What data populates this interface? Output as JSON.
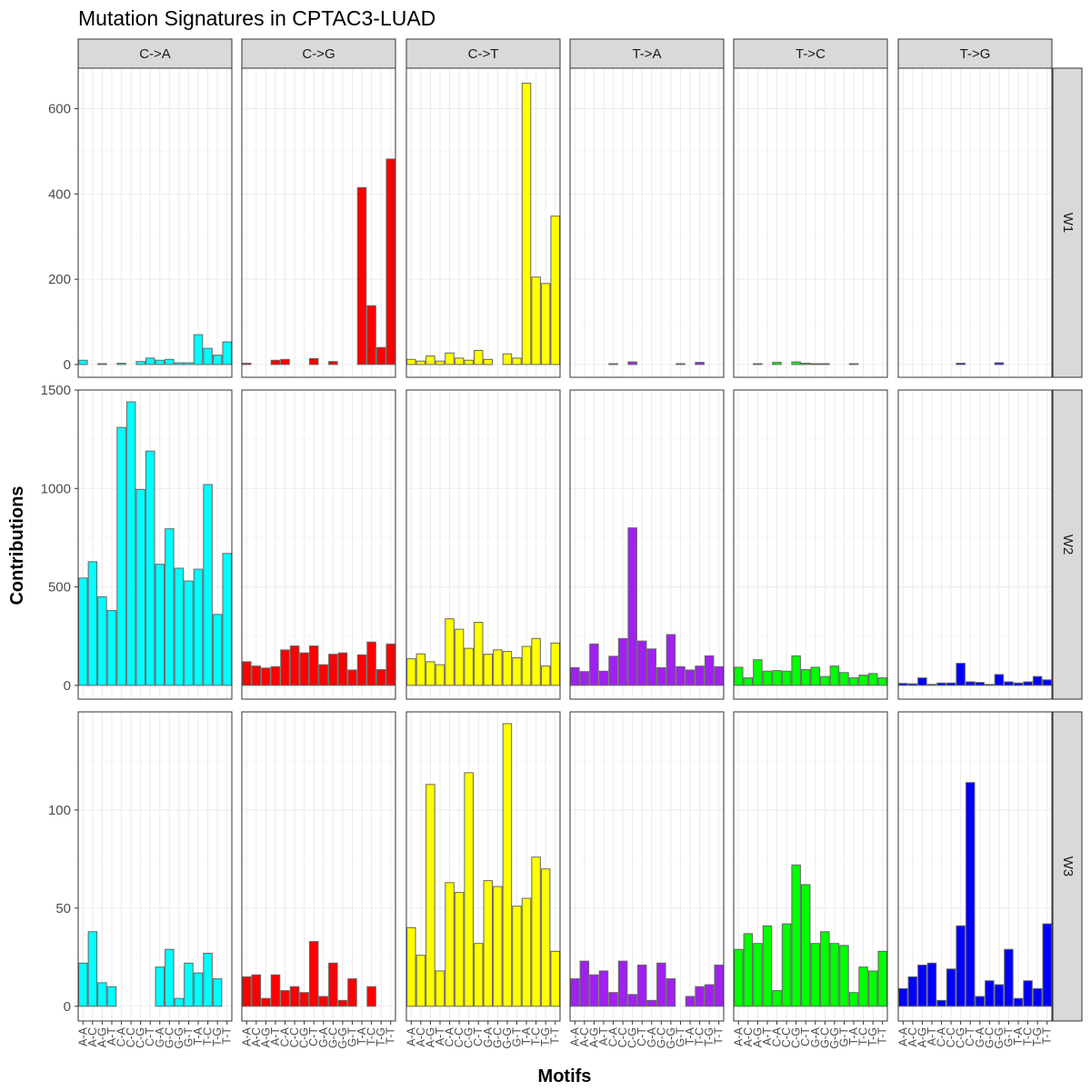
{
  "chart_data": {
    "type": "bar",
    "title": "Mutation Signatures in CPTAC3-LUAD",
    "xlabel": "Motifs",
    "ylabel": "Contributions",
    "facets_col": [
      "C->A",
      "C->G",
      "C->T",
      "T->A",
      "T->C",
      "T->G"
    ],
    "facets_row": [
      "W1",
      "W2",
      "W3"
    ],
    "categories": [
      "A-A",
      "A-C",
      "A-G",
      "A-T",
      "C-A",
      "C-C",
      "C-G",
      "C-T",
      "G-A",
      "G-C",
      "G-G",
      "G-T",
      "T-A",
      "T-C",
      "T-G",
      "T-T"
    ],
    "colors": {
      "C->A": "#00FFFF",
      "C->G": "#FF0000",
      "C->T": "#FFFF00",
      "T->A": "#A020F0",
      "T->C": "#00FF00",
      "T->G": "#0000FF"
    },
    "bar_outline": "#666666",
    "rows": [
      {
        "name": "W1",
        "ylim": [
          -30,
          695
        ],
        "yticks": [
          0,
          200,
          400,
          600
        ],
        "series": [
          {
            "name": "C->A",
            "values": [
              10,
              0,
              2,
              0,
              3,
              0,
              7,
              15,
              10,
              12,
              4,
              4,
              70,
              38,
              22,
              53
            ]
          },
          {
            "name": "C->G",
            "values": [
              3,
              0,
              0,
              10,
              12,
              0,
              0,
              14,
              0,
              7,
              0,
              0,
              415,
              138,
              40,
              482
            ]
          },
          {
            "name": "C->T",
            "values": [
              12,
              8,
              20,
              8,
              27,
              15,
              10,
              33,
              12,
              0,
              25,
              15,
              660,
              205,
              190,
              348
            ]
          },
          {
            "name": "T->A",
            "values": [
              0,
              0,
              0,
              0,
              2,
              0,
              6,
              0,
              0,
              0,
              0,
              2,
              0,
              5,
              0,
              0
            ]
          },
          {
            "name": "T->C",
            "values": [
              0,
              0,
              2,
              0,
              5,
              0,
              6,
              3,
              2,
              2,
              0,
              0,
              2,
              0,
              0,
              0
            ]
          },
          {
            "name": "T->G",
            "values": [
              0,
              0,
              0,
              0,
              0,
              0,
              3,
              0,
              0,
              0,
              4,
              0,
              0,
              0,
              0,
              0
            ]
          }
        ]
      },
      {
        "name": "W2",
        "ylim": [
          -70,
          1500
        ],
        "yticks": [
          0,
          500,
          1000,
          1500
        ],
        "series": [
          {
            "name": "C->A",
            "values": [
              545,
              628,
              450,
              380,
              1310,
              1440,
              995,
              1190,
              615,
              795,
              595,
              530,
              590,
              1020,
              360,
              670
            ]
          },
          {
            "name": "C->G",
            "values": [
              120,
              98,
              88,
              95,
              180,
              200,
              165,
              200,
              105,
              158,
              165,
              78,
              155,
              220,
              80,
              210
            ]
          },
          {
            "name": "C->T",
            "values": [
              135,
              160,
              120,
              105,
              338,
              285,
              188,
              320,
              158,
              180,
              172,
              140,
              198,
              238,
              98,
              215
            ]
          },
          {
            "name": "T->A",
            "values": [
              90,
              70,
              210,
              72,
              148,
              238,
              800,
              225,
              185,
              90,
              258,
              95,
              78,
              98,
              150,
              95
            ]
          },
          {
            "name": "T->C",
            "values": [
              92,
              38,
              130,
              72,
              75,
              72,
              150,
              80,
              92,
              45,
              98,
              65,
              38,
              52,
              60,
              38
            ]
          },
          {
            "name": "T->G",
            "values": [
              10,
              8,
              38,
              5,
              12,
              12,
              112,
              18,
              15,
              5,
              55,
              18,
              12,
              18,
              45,
              28
            ]
          }
        ]
      },
      {
        "name": "W3",
        "ylim": [
          -7.5,
          150
        ],
        "yticks": [
          0,
          50,
          100
        ],
        "series": [
          {
            "name": "C->A",
            "values": [
              22,
              38,
              12,
              10,
              0,
              0,
              0,
              0,
              20,
              29,
              4,
              22,
              17,
              27,
              14,
              0
            ]
          },
          {
            "name": "C->G",
            "values": [
              15,
              16,
              4,
              16,
              8,
              10,
              7,
              33,
              5,
              22,
              3,
              14,
              0,
              10,
              0,
              0
            ]
          },
          {
            "name": "C->T",
            "values": [
              40,
              26,
              113,
              18,
              63,
              58,
              119,
              32,
              64,
              61,
              144,
              51,
              55,
              76,
              70,
              28
            ]
          },
          {
            "name": "T->A",
            "values": [
              14,
              23,
              16,
              18,
              7,
              23,
              6,
              21,
              3,
              22,
              14,
              0,
              5,
              10,
              11,
              21
            ]
          },
          {
            "name": "T->C",
            "values": [
              29,
              37,
              32,
              41,
              8,
              42,
              72,
              62,
              32,
              38,
              32,
              31,
              7,
              20,
              18,
              28
            ]
          },
          {
            "name": "T->G",
            "values": [
              9,
              15,
              21,
              22,
              3,
              19,
              41,
              114,
              5,
              13,
              11,
              29,
              4,
              13,
              9,
              42
            ]
          }
        ]
      }
    ]
  }
}
